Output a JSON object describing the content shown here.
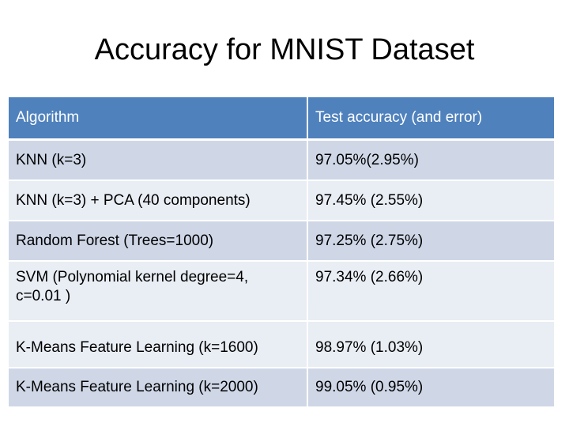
{
  "slide": {
    "title": "Accuracy for MNIST Dataset"
  },
  "table": {
    "headers": [
      "Algorithm",
      "Test accuracy (and error)"
    ],
    "rows": [
      {
        "algorithm": "KNN (k=3)",
        "accuracy": "97.05%(2.95%)"
      },
      {
        "algorithm": "KNN (k=3) + PCA (40 components)",
        "accuracy": "97.45% (2.55%)"
      },
      {
        "algorithm": "Random Forest (Trees=1000)",
        "accuracy": "97.25% (2.75%)"
      },
      {
        "algorithm_line1": "SVM (Polynomial kernel degree=4,",
        "algorithm_line2": "c=0.01 )",
        "accuracy": "97.34% (2.66%)"
      },
      {
        "algorithm": "K-Means Feature Learning (k=1600)",
        "accuracy": "98.97% (1.03%)"
      },
      {
        "algorithm": "K-Means Feature Learning (k=2000)",
        "accuracy": "99.05% (0.95%)"
      }
    ]
  },
  "colors": {
    "header_bg": "#4f81bd",
    "row_dark": "#cfd7e7",
    "row_light": "#e9edf4"
  }
}
